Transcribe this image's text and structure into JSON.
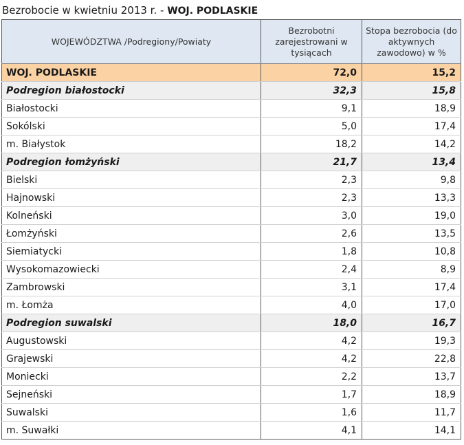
{
  "title": {
    "prefix": "Bezrobocie w kwietniu 2013 r. - ",
    "region": "WOJ. PODLASKIE"
  },
  "table": {
    "headers": [
      "WOJEWÓDZTWA /Podregiony/Powiaty",
      "Bezrobotni zarejestrowani w tysiącach",
      "Stopa bezrobocia (do aktywnych zawodowo) w %"
    ],
    "rows": [
      {
        "kind": "woj",
        "name": "WOJ. PODLASKIE",
        "unemployed": "72,0",
        "rate": "15,2"
      },
      {
        "kind": "sub",
        "name": "Podregion białostocki",
        "unemployed": "32,3",
        "rate": "15,8"
      },
      {
        "kind": "row",
        "name": "Białostocki",
        "unemployed": "9,1",
        "rate": "18,9"
      },
      {
        "kind": "row",
        "name": "Sokólski",
        "unemployed": "5,0",
        "rate": "17,4"
      },
      {
        "kind": "row",
        "name": "m. Białystok",
        "unemployed": "18,2",
        "rate": "14,2"
      },
      {
        "kind": "sub",
        "name": "Podregion łomżyński",
        "unemployed": "21,7",
        "rate": "13,4"
      },
      {
        "kind": "row",
        "name": "Bielski",
        "unemployed": "2,3",
        "rate": "9,8"
      },
      {
        "kind": "row",
        "name": "Hajnowski",
        "unemployed": "2,3",
        "rate": "13,3"
      },
      {
        "kind": "row",
        "name": "Kolneński",
        "unemployed": "3,0",
        "rate": "19,0"
      },
      {
        "kind": "row",
        "name": "Łomżyński",
        "unemployed": "2,6",
        "rate": "13,5"
      },
      {
        "kind": "row",
        "name": "Siemiatycki",
        "unemployed": "1,8",
        "rate": "10,8"
      },
      {
        "kind": "row",
        "name": "Wysokomazowiecki",
        "unemployed": "2,4",
        "rate": "8,9"
      },
      {
        "kind": "row",
        "name": "Zambrowski",
        "unemployed": "3,1",
        "rate": "17,4"
      },
      {
        "kind": "row",
        "name": "m. Łomża",
        "unemployed": "4,0",
        "rate": "17,0"
      },
      {
        "kind": "sub",
        "name": "Podregion suwalski",
        "unemployed": "18,0",
        "rate": "16,7"
      },
      {
        "kind": "row",
        "name": "Augustowski",
        "unemployed": "4,2",
        "rate": "19,3"
      },
      {
        "kind": "row",
        "name": "Grajewski",
        "unemployed": "4,2",
        "rate": "22,8"
      },
      {
        "kind": "row",
        "name": "Moniecki",
        "unemployed": "2,2",
        "rate": "13,7"
      },
      {
        "kind": "row",
        "name": "Sejneński",
        "unemployed": "1,7",
        "rate": "18,9"
      },
      {
        "kind": "row",
        "name": "Suwalski",
        "unemployed": "1,6",
        "rate": "11,7"
      },
      {
        "kind": "row",
        "name": "m. Suwałki",
        "unemployed": "4,1",
        "rate": "14,1"
      }
    ]
  },
  "colors": {
    "header_bg": "#dfe8f2",
    "voivodeship_bg": "#fbd2a4",
    "subregion_bg": "#efefef"
  }
}
